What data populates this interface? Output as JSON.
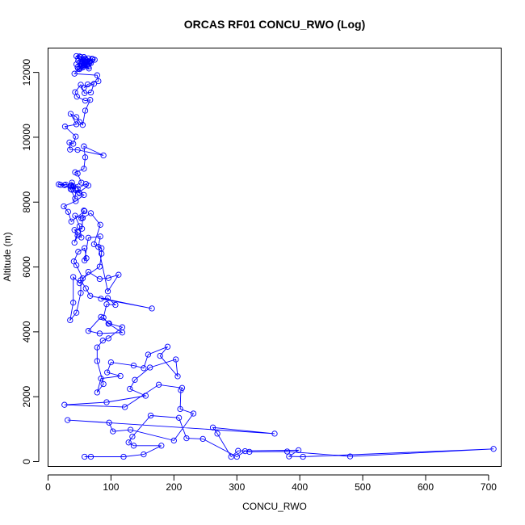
{
  "chart_data": {
    "type": "scatter",
    "title": "ORCAS RF01 CONCU_RWO (Log)",
    "xlabel": "CONCU_RWO",
    "ylabel": "Altitude (m)",
    "xlim": [
      0,
      720
    ],
    "ylim": [
      -150,
      12750
    ],
    "xticks": [
      0,
      100,
      200,
      300,
      400,
      500,
      600,
      700
    ],
    "yticks": [
      0,
      2000,
      4000,
      6000,
      8000,
      10000,
      12000
    ],
    "grid": false,
    "legend": "none",
    "connected": true,
    "marker": "open-circle",
    "series": [
      {
        "color": "#0000ff",
        "points": [
          [
            58,
            150
          ],
          [
            68,
            150
          ],
          [
            120,
            150
          ],
          [
            152,
            220
          ],
          [
            180,
            490
          ],
          [
            136,
            490
          ],
          [
            128,
            590
          ],
          [
            134,
            770
          ],
          [
            163,
            1420
          ],
          [
            208,
            1350
          ],
          [
            220,
            720
          ],
          [
            246,
            700
          ],
          [
            300,
            150
          ],
          [
            313,
            320
          ],
          [
            320,
            300
          ],
          [
            380,
            310
          ],
          [
            480,
            160
          ],
          [
            708,
            390
          ],
          [
            405,
            150
          ],
          [
            383,
            160
          ],
          [
            398,
            350
          ],
          [
            302,
            330
          ],
          [
            291,
            150
          ],
          [
            269,
            860
          ],
          [
            262,
            1050
          ],
          [
            360,
            860
          ],
          [
            31,
            1280
          ],
          [
            97,
            1200
          ],
          [
            103,
            930
          ],
          [
            131,
            980
          ],
          [
            200,
            650
          ],
          [
            231,
            1480
          ],
          [
            210,
            1620
          ],
          [
            211,
            2200
          ],
          [
            213,
            2270
          ],
          [
            176,
            2370
          ],
          [
            122,
            1680
          ],
          [
            26,
            1750
          ],
          [
            93,
            1830
          ],
          [
            155,
            2030
          ],
          [
            130,
            2240
          ],
          [
            138,
            2520
          ],
          [
            162,
            2900
          ],
          [
            203,
            3150
          ],
          [
            206,
            2630
          ],
          [
            178,
            3260
          ],
          [
            190,
            3540
          ],
          [
            159,
            3300
          ],
          [
            152,
            2880
          ],
          [
            136,
            2960
          ],
          [
            100,
            3060
          ],
          [
            94,
            2750
          ],
          [
            115,
            2640
          ],
          [
            84,
            2560
          ],
          [
            78,
            2130
          ],
          [
            88,
            2390
          ],
          [
            78,
            3100
          ],
          [
            78,
            3520
          ],
          [
            87,
            3730
          ],
          [
            96,
            3800
          ],
          [
            118,
            4140
          ],
          [
            97,
            4260
          ],
          [
            84,
            4460
          ],
          [
            64,
            4030
          ],
          [
            82,
            3950
          ],
          [
            118,
            3980
          ],
          [
            96,
            4250
          ],
          [
            88,
            4440
          ],
          [
            93,
            4850
          ],
          [
            107,
            4830
          ],
          [
            95,
            5040
          ],
          [
            84,
            5020
          ],
          [
            165,
            4720
          ],
          [
            67,
            5110
          ],
          [
            60,
            5340
          ],
          [
            52,
            5590
          ],
          [
            52,
            5200
          ],
          [
            45,
            4590
          ],
          [
            35,
            4360
          ],
          [
            40,
            4900
          ],
          [
            40,
            5690
          ],
          [
            50,
            5500
          ],
          [
            64,
            5850
          ],
          [
            82,
            5630
          ],
          [
            96,
            5660
          ],
          [
            112,
            5760
          ],
          [
            95,
            5250
          ],
          [
            80,
            6620
          ],
          [
            83,
            6940
          ],
          [
            64,
            6900
          ],
          [
            58,
            6200
          ],
          [
            61,
            6270
          ],
          [
            58,
            6580
          ],
          [
            48,
            6470
          ],
          [
            41,
            6170
          ],
          [
            45,
            6050
          ],
          [
            55,
            5650
          ],
          [
            82,
            6010
          ],
          [
            85,
            6410
          ],
          [
            85,
            6580
          ],
          [
            73,
            6700
          ],
          [
            83,
            7300
          ],
          [
            68,
            7660
          ],
          [
            55,
            7510
          ],
          [
            54,
            7180
          ],
          [
            42,
            7140
          ],
          [
            47,
            7070
          ],
          [
            42,
            6750
          ],
          [
            47,
            6970
          ],
          [
            53,
            6910
          ],
          [
            50,
            7260
          ],
          [
            43,
            7580
          ],
          [
            53,
            7500
          ],
          [
            57,
            7740
          ],
          [
            58,
            7720
          ],
          [
            37,
            7400
          ],
          [
            32,
            7700
          ],
          [
            25,
            7870
          ],
          [
            44,
            8030
          ],
          [
            57,
            8220
          ],
          [
            49,
            8300
          ],
          [
            64,
            8510
          ],
          [
            60,
            8560
          ],
          [
            47,
            8420
          ],
          [
            50,
            8270
          ],
          [
            44,
            8370
          ],
          [
            43,
            8110
          ],
          [
            36,
            8400
          ],
          [
            26,
            8520
          ],
          [
            20,
            8530
          ],
          [
            17,
            8550
          ],
          [
            28,
            8540
          ],
          [
            37,
            8520
          ],
          [
            36,
            8500
          ],
          [
            44,
            8410
          ],
          [
            38,
            8600
          ],
          [
            38,
            8380
          ],
          [
            40,
            8490
          ],
          [
            53,
            8600
          ],
          [
            47,
            8880
          ],
          [
            43,
            8920
          ],
          [
            57,
            9030
          ],
          [
            59,
            9380
          ],
          [
            57,
            9720
          ],
          [
            88,
            9440
          ],
          [
            47,
            9610
          ],
          [
            35,
            9620
          ],
          [
            34,
            9840
          ],
          [
            40,
            9800
          ],
          [
            44,
            10020
          ],
          [
            27,
            10330
          ],
          [
            45,
            10400
          ],
          [
            36,
            10720
          ],
          [
            45,
            10620
          ],
          [
            50,
            10470
          ],
          [
            55,
            10380
          ],
          [
            59,
            10820
          ],
          [
            67,
            11150
          ],
          [
            59,
            11130
          ],
          [
            46,
            11250
          ],
          [
            43,
            11390
          ],
          [
            52,
            11620
          ],
          [
            58,
            11360
          ],
          [
            68,
            11380
          ],
          [
            73,
            11650
          ],
          [
            57,
            11530
          ],
          [
            63,
            11630
          ],
          [
            80,
            11730
          ],
          [
            78,
            11910
          ],
          [
            42,
            11960
          ],
          [
            50,
            12100
          ],
          [
            54,
            12200
          ],
          [
            65,
            12120
          ],
          [
            58,
            12260
          ],
          [
            68,
            12290
          ],
          [
            45,
            12250
          ],
          [
            55,
            12310
          ],
          [
            48,
            12360
          ],
          [
            61,
            12380
          ],
          [
            66,
            12300
          ],
          [
            70,
            12420
          ],
          [
            67,
            12340
          ],
          [
            59,
            12420
          ],
          [
            57,
            12470
          ],
          [
            50,
            12490
          ],
          [
            45,
            12500
          ],
          [
            48,
            12440
          ],
          [
            52,
            12470
          ],
          [
            59,
            12390
          ],
          [
            64,
            12430
          ],
          [
            54,
            12330
          ],
          [
            62,
            12250
          ],
          [
            71,
            12410
          ],
          [
            74,
            12390
          ],
          [
            62,
            12210
          ],
          [
            56,
            12190
          ],
          [
            55,
            12150
          ],
          [
            51,
            12140
          ],
          [
            48,
            12110
          ],
          [
            64,
            12180
          ],
          [
            57,
            12290
          ],
          [
            52,
            12340
          ],
          [
            58,
            12350
          ],
          [
            65,
            12330
          ],
          [
            57,
            12230
          ],
          [
            53,
            12190
          ],
          [
            47,
            12160
          ]
        ]
      }
    ]
  }
}
